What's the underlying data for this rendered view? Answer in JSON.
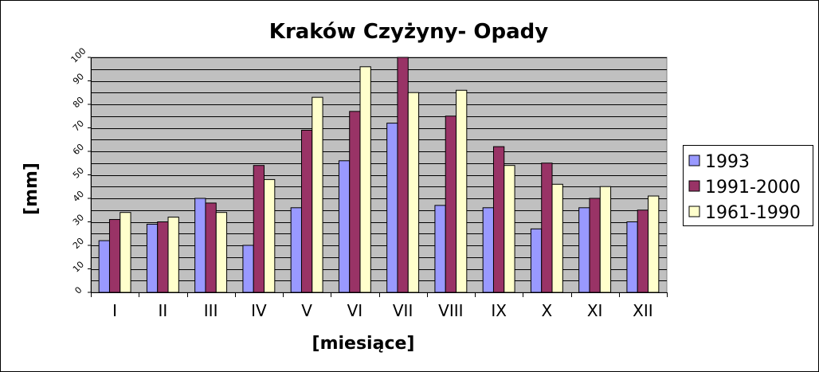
{
  "chart_data": {
    "type": "bar",
    "title": "Kraków Czyżyny- Opady",
    "xlabel": "[miesiące]",
    "ylabel": "[mm]",
    "ylim": [
      0,
      100
    ],
    "yticks": [
      "0",
      "10",
      "20",
      "30",
      "40",
      "50",
      "60",
      "70",
      "80",
      "90",
      "100"
    ],
    "categories": [
      "I",
      "II",
      "III",
      "IV",
      "V",
      "VI",
      "VII",
      "VIII",
      "IX",
      "X",
      "XI",
      "XII"
    ],
    "series": [
      {
        "name": "1993",
        "color": "#9999ff",
        "values": [
          22,
          29,
          40,
          20,
          36,
          56,
          72,
          37,
          36,
          27,
          36,
          30
        ]
      },
      {
        "name": "1991-2000",
        "color": "#993366",
        "values": [
          31,
          30,
          38,
          54,
          69,
          77,
          100,
          75,
          62,
          55,
          40,
          35
        ]
      },
      {
        "name": "1961-1990",
        "color": "#ffffcc",
        "values": [
          34,
          32,
          34,
          48,
          83,
          96,
          85,
          86,
          54,
          46,
          45,
          41
        ]
      }
    ],
    "grid": true,
    "plot_background": "#c0c0c0",
    "legend_position": "right"
  }
}
